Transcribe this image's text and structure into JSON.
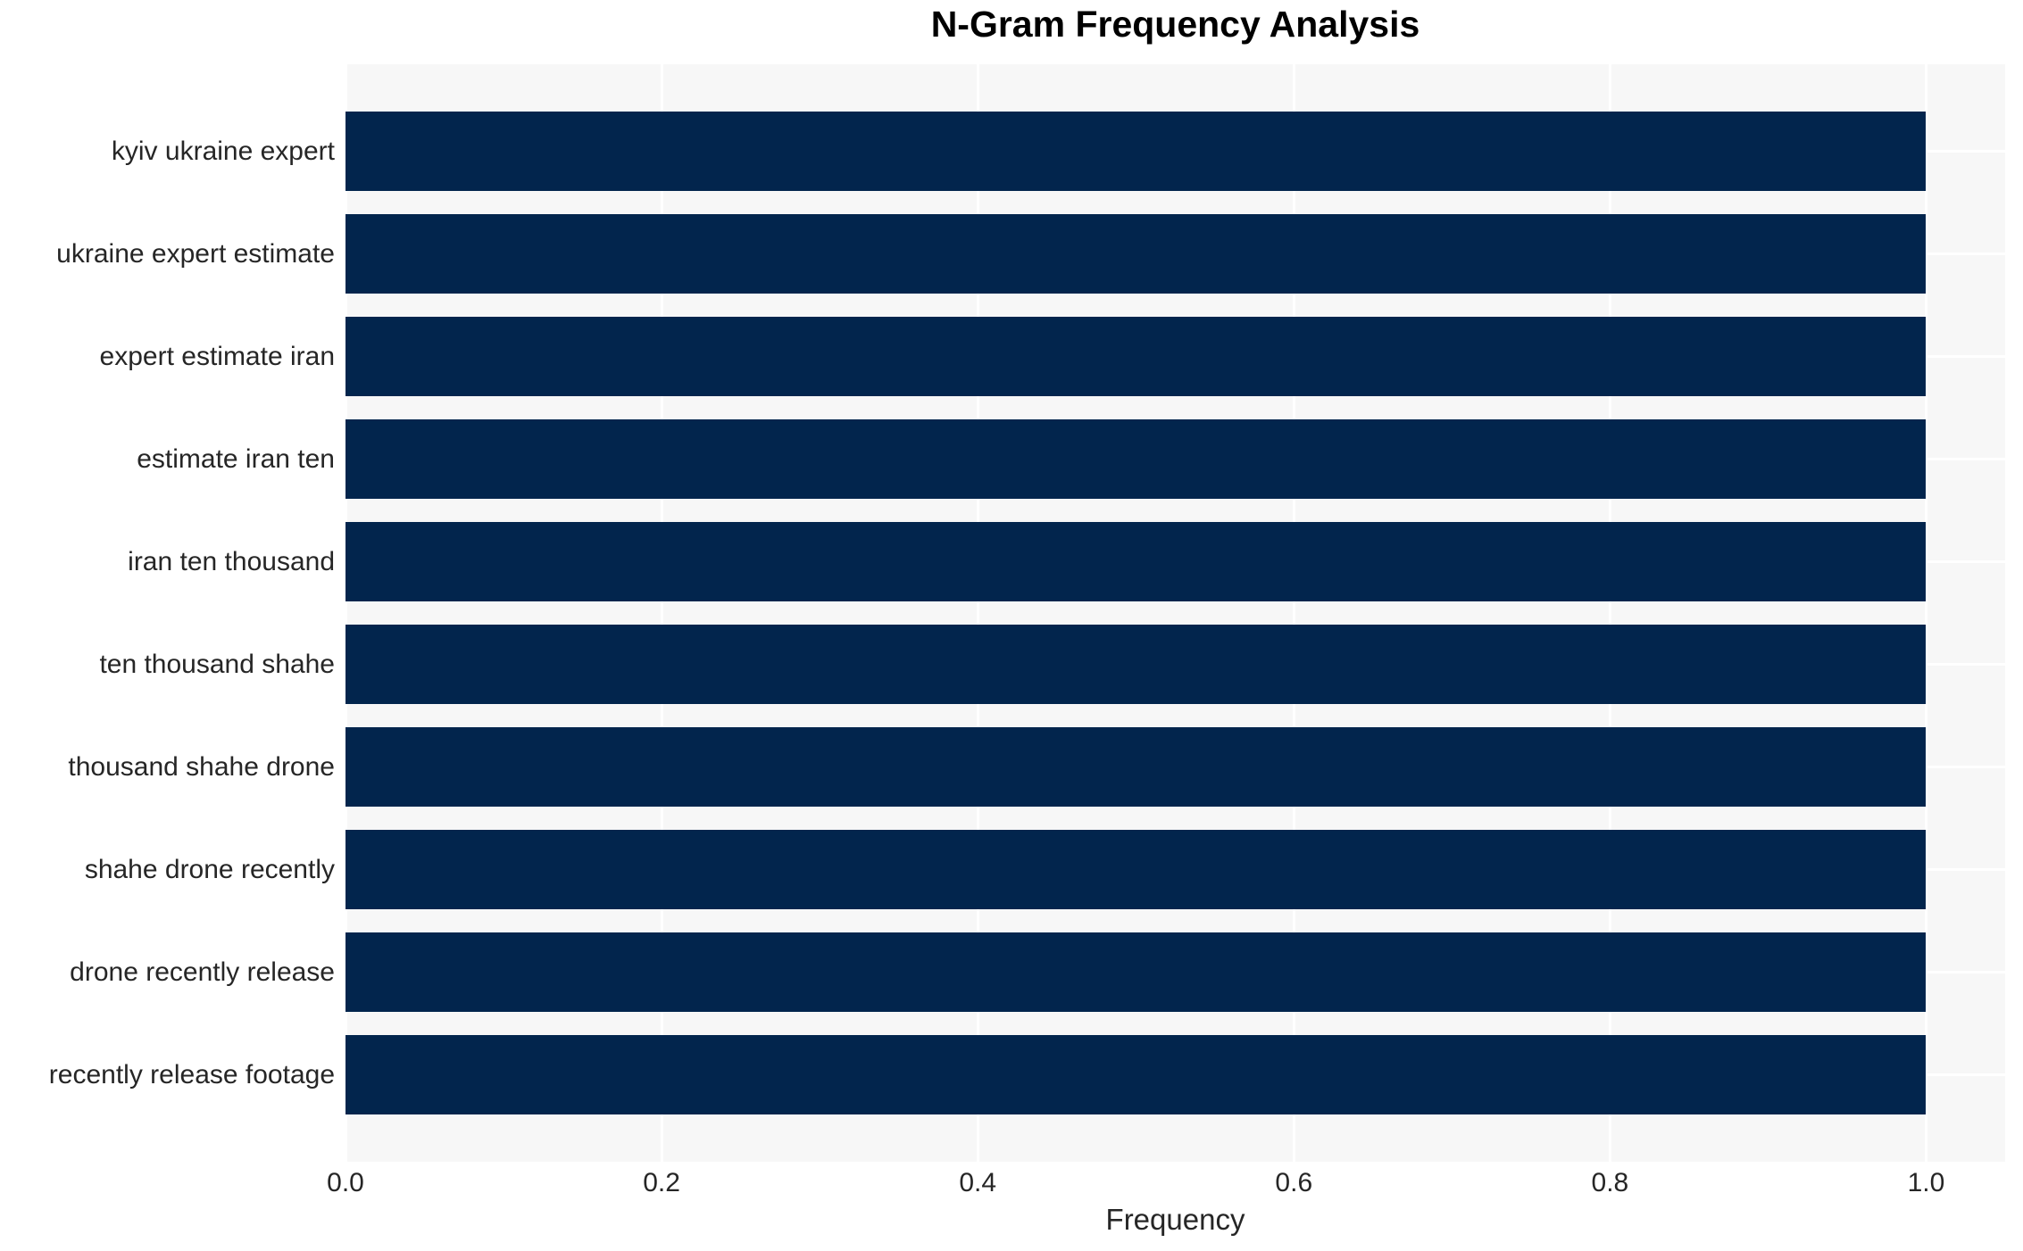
{
  "chart_data": {
    "type": "bar",
    "orientation": "horizontal",
    "title": "N-Gram Frequency Analysis",
    "xlabel": "Frequency",
    "ylabel": "",
    "categories": [
      "kyiv ukraine expert",
      "ukraine expert estimate",
      "expert estimate iran",
      "estimate iran ten",
      "iran ten thousand",
      "ten thousand shahe",
      "thousand shahe drone",
      "shahe drone recently",
      "drone recently release",
      "recently release footage"
    ],
    "values": [
      1.0,
      1.0,
      1.0,
      1.0,
      1.0,
      1.0,
      1.0,
      1.0,
      1.0,
      1.0
    ],
    "xtick_values": [
      0.0,
      0.2,
      0.4,
      0.6,
      0.8,
      1.0
    ],
    "xtick_labels": [
      "0.0",
      "0.2",
      "0.4",
      "0.6",
      "0.8",
      "1.0"
    ],
    "xlim": [
      0.0,
      1.05
    ],
    "grid": true,
    "legend_visible": false,
    "colors": {
      "bar": "#02254d",
      "plot_background": "#f7f7f7",
      "gridline": "#ffffff",
      "text": "#262626",
      "title": "#000000",
      "figure_background": "#ffffff"
    }
  }
}
